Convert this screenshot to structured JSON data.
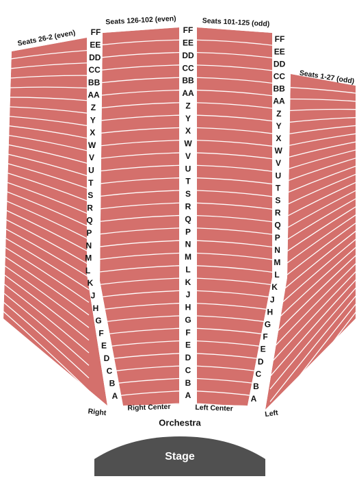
{
  "sections": [
    {
      "label": "Seats 26-2 (even)",
      "name": "Right"
    },
    {
      "label": "Seats 126-102 (even)",
      "name": "Right Center"
    },
    {
      "label": "Seats 101-125 (odd)",
      "name": "Left Center"
    },
    {
      "label": "Seats 1-27 (odd)",
      "name": "Left"
    }
  ],
  "rows": [
    "FF",
    "EE",
    "DD",
    "CC",
    "BB",
    "AA",
    "Z",
    "Y",
    "X",
    "W",
    "V",
    "U",
    "T",
    "S",
    "R",
    "Q",
    "P",
    "N",
    "M",
    "L",
    "K",
    "J",
    "H",
    "G",
    "F",
    "E",
    "D",
    "C",
    "B",
    "A"
  ],
  "area": "Orchestra",
  "stage": "Stage"
}
